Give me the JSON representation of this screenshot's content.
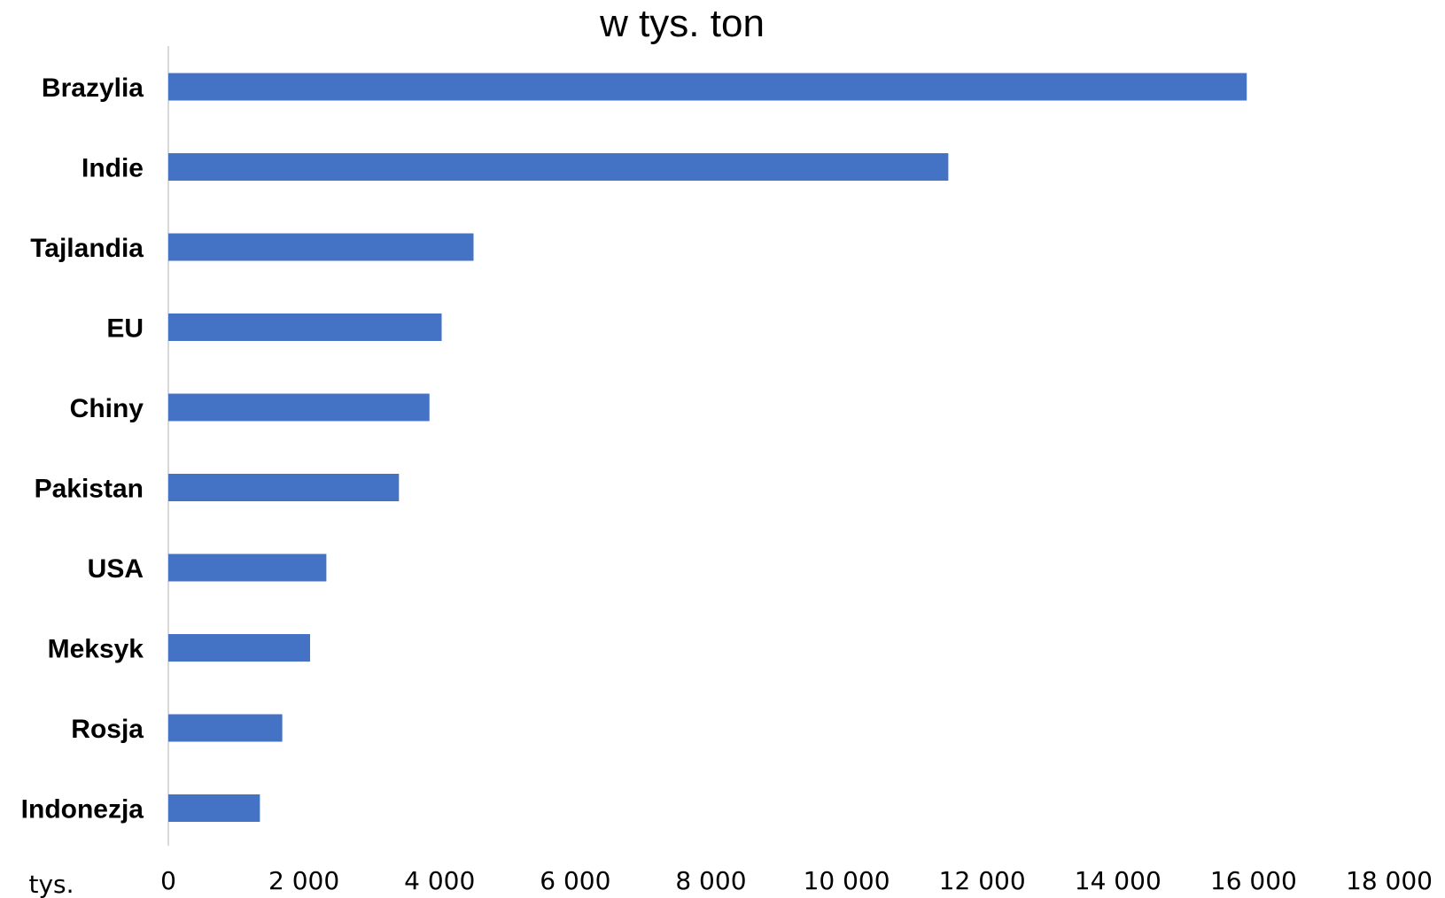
{
  "chart_data": {
    "type": "bar",
    "orientation": "horizontal",
    "title": "w tys. ton",
    "xlabel": "tys.",
    "ylabel": "",
    "categories": [
      "Brazylia",
      "Indie",
      "Tajlandia",
      "EU",
      "Chiny",
      "Pakistan",
      "USA",
      "Meksyk",
      "Rosja",
      "Indonezja"
    ],
    "values": [
      15900,
      11500,
      4500,
      4030,
      3850,
      3400,
      2330,
      2090,
      1680,
      1350
    ],
    "xlim": [
      0,
      18000
    ],
    "x_ticks": [
      0,
      2000,
      4000,
      6000,
      8000,
      10000,
      12000,
      14000,
      16000,
      18000
    ],
    "x_tick_labels": [
      "0",
      "2 000",
      "4 000",
      "6 000",
      "8 000",
      "10 000",
      "12 000",
      "14 000",
      "16 000",
      "18 000"
    ],
    "grid": false,
    "legend": "none",
    "bar_color": "#4472C4",
    "axis_color": "#D9D9D9"
  }
}
